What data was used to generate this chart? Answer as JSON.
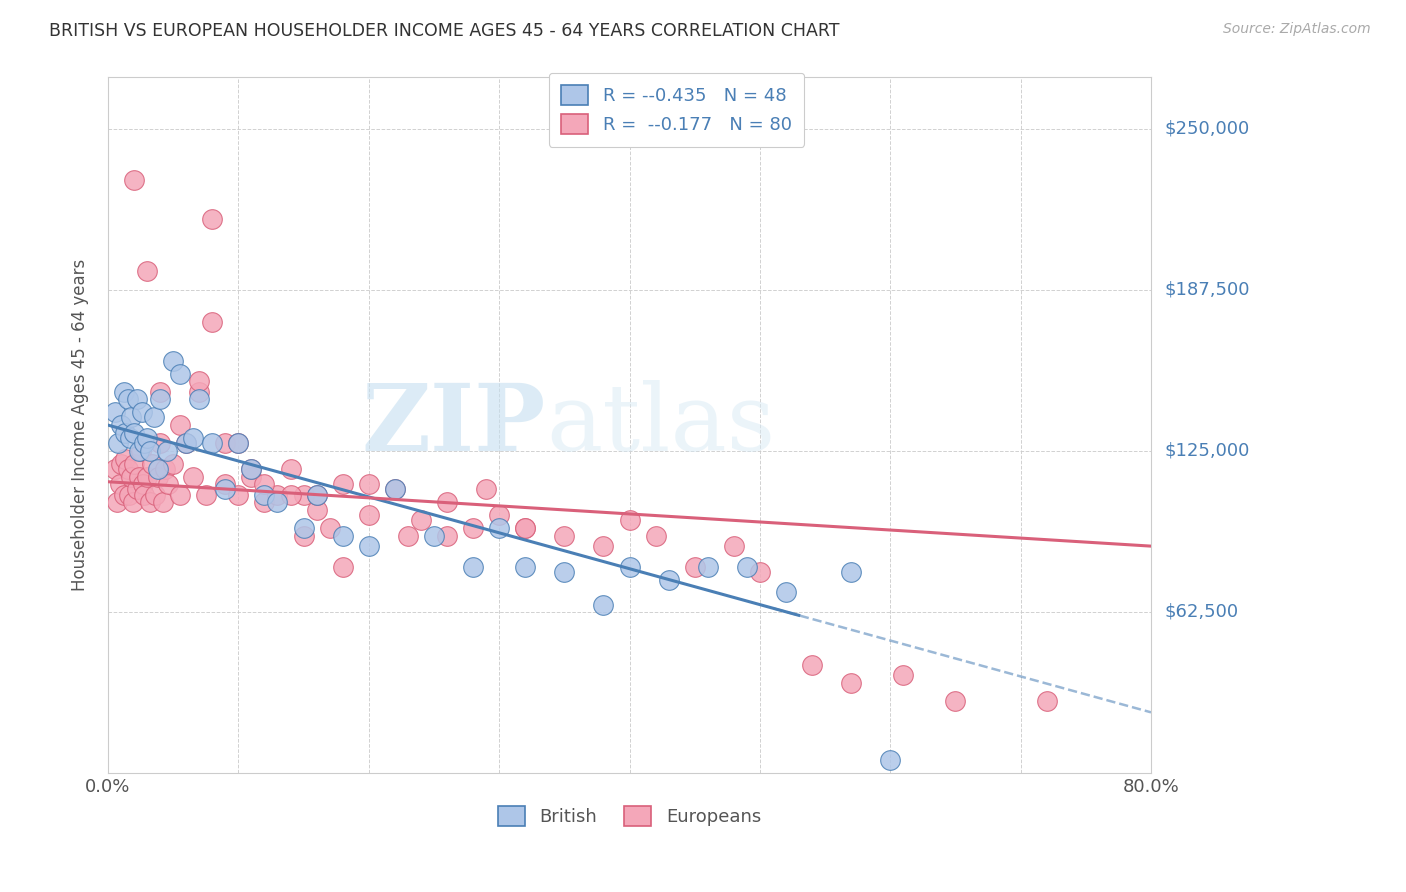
{
  "title": "BRITISH VS EUROPEAN HOUSEHOLDER INCOME AGES 45 - 64 YEARS CORRELATION CHART",
  "source": "Source: ZipAtlas.com",
  "ylabel": "Householder Income Ages 45 - 64 years",
  "xlim": [
    0.0,
    0.8
  ],
  "ylim": [
    0,
    270000
  ],
  "yticks": [
    0,
    62500,
    125000,
    187500,
    250000
  ],
  "ytick_labels": [
    "",
    "$62,500",
    "$125,000",
    "$187,500",
    "$250,000"
  ],
  "xtick_labels": [
    "0.0%",
    "",
    "",
    "",
    "",
    "",
    "",
    "",
    "80.0%"
  ],
  "british_color": "#aec6e8",
  "european_color": "#f4a7b9",
  "line_british_color": "#4a7fb5",
  "line_european_color": "#d9607a",
  "legend_r_british": "-0.435",
  "legend_n_british": "48",
  "legend_r_european": "-0.177",
  "legend_n_european": "80",
  "watermark_zip": "ZIP",
  "watermark_atlas": "atlas",
  "british_x": [
    0.005,
    0.008,
    0.01,
    0.012,
    0.013,
    0.015,
    0.017,
    0.018,
    0.02,
    0.022,
    0.024,
    0.026,
    0.028,
    0.03,
    0.032,
    0.035,
    0.038,
    0.04,
    0.045,
    0.05,
    0.055,
    0.06,
    0.065,
    0.07,
    0.08,
    0.09,
    0.1,
    0.11,
    0.12,
    0.13,
    0.15,
    0.16,
    0.18,
    0.2,
    0.22,
    0.25,
    0.28,
    0.3,
    0.32,
    0.35,
    0.38,
    0.4,
    0.43,
    0.46,
    0.49,
    0.52,
    0.57,
    0.6
  ],
  "british_y": [
    140000,
    128000,
    135000,
    148000,
    132000,
    145000,
    130000,
    138000,
    132000,
    145000,
    125000,
    140000,
    128000,
    130000,
    125000,
    138000,
    118000,
    145000,
    125000,
    160000,
    155000,
    128000,
    130000,
    145000,
    128000,
    110000,
    128000,
    118000,
    108000,
    105000,
    95000,
    108000,
    92000,
    88000,
    110000,
    92000,
    80000,
    95000,
    80000,
    78000,
    65000,
    80000,
    75000,
    80000,
    80000,
    70000,
    78000,
    5000
  ],
  "european_x": [
    0.005,
    0.007,
    0.009,
    0.01,
    0.012,
    0.013,
    0.015,
    0.016,
    0.018,
    0.019,
    0.02,
    0.022,
    0.024,
    0.025,
    0.027,
    0.028,
    0.03,
    0.032,
    0.034,
    0.036,
    0.038,
    0.04,
    0.042,
    0.044,
    0.046,
    0.05,
    0.055,
    0.06,
    0.065,
    0.07,
    0.075,
    0.08,
    0.09,
    0.1,
    0.11,
    0.12,
    0.13,
    0.14,
    0.15,
    0.16,
    0.17,
    0.18,
    0.2,
    0.22,
    0.24,
    0.26,
    0.28,
    0.3,
    0.32,
    0.35,
    0.38,
    0.4,
    0.42,
    0.45,
    0.48,
    0.5,
    0.54,
    0.57,
    0.61,
    0.65,
    0.02,
    0.03,
    0.04,
    0.055,
    0.07,
    0.09,
    0.11,
    0.14,
    0.16,
    0.2,
    0.23,
    0.26,
    0.29,
    0.32,
    0.08,
    0.1,
    0.12,
    0.15,
    0.18,
    0.72
  ],
  "european_y": [
    118000,
    105000,
    112000,
    120000,
    108000,
    122000,
    118000,
    108000,
    115000,
    105000,
    120000,
    110000,
    115000,
    125000,
    112000,
    108000,
    115000,
    105000,
    120000,
    108000,
    115000,
    128000,
    105000,
    118000,
    112000,
    120000,
    108000,
    128000,
    115000,
    148000,
    108000,
    175000,
    112000,
    108000,
    115000,
    105000,
    108000,
    118000,
    108000,
    102000,
    95000,
    112000,
    100000,
    110000,
    98000,
    105000,
    95000,
    100000,
    95000,
    92000,
    88000,
    98000,
    92000,
    80000,
    88000,
    78000,
    42000,
    35000,
    38000,
    28000,
    230000,
    195000,
    148000,
    135000,
    152000,
    128000,
    118000,
    108000,
    108000,
    112000,
    92000,
    92000,
    110000,
    95000,
    215000,
    128000,
    112000,
    92000,
    80000,
    28000
  ]
}
